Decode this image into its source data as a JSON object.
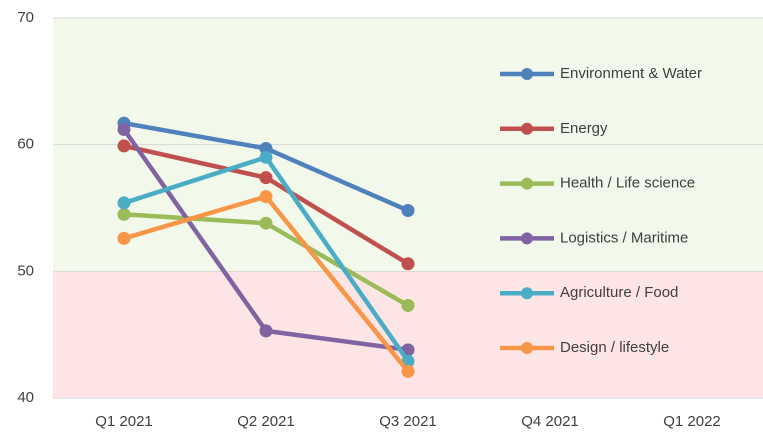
{
  "chart_data": {
    "type": "line",
    "categories": [
      "Q1 2021",
      "Q2 2021",
      "Q3 2021",
      "Q4 2021",
      "Q1 2022"
    ],
    "series": [
      {
        "name": "Environment & Water",
        "color": "#4f81bd",
        "values": [
          61.7,
          59.7,
          54.8,
          null,
          null
        ]
      },
      {
        "name": "Energy",
        "color": "#c0504d",
        "values": [
          59.9,
          57.4,
          50.6,
          null,
          null
        ]
      },
      {
        "name": "Health / Life science",
        "color": "#9bbb59",
        "values": [
          54.5,
          53.8,
          47.3,
          null,
          null
        ]
      },
      {
        "name": "Logistics / Maritime",
        "color": "#8064a2",
        "values": [
          61.2,
          45.3,
          43.8,
          null,
          null
        ]
      },
      {
        "name": "Agriculture / Food",
        "color": "#4bacc6",
        "values": [
          55.4,
          59.0,
          42.9,
          null,
          null
        ]
      },
      {
        "name": "Design / lifestyle",
        "color": "#f79646",
        "values": [
          52.6,
          55.9,
          42.1,
          null,
          null
        ]
      }
    ],
    "ylim": [
      40,
      70
    ],
    "yticks": [
      40,
      50,
      60,
      70
    ],
    "grid": true,
    "legend": "right",
    "bands": [
      {
        "from": 50,
        "to": 70,
        "color": "#f2f8ea"
      },
      {
        "from": 40,
        "to": 50,
        "color": "#fde5e6"
      }
    ]
  }
}
